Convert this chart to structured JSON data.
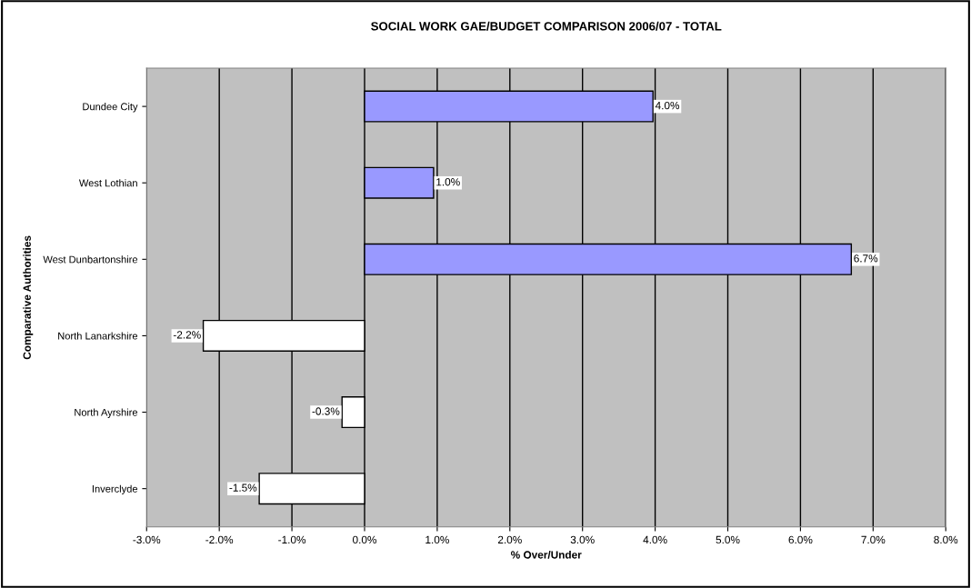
{
  "chart_data": {
    "type": "bar",
    "orientation": "horizontal",
    "title": "SOCIAL WORK GAE/BUDGET COMPARISON 2006/07 - TOTAL",
    "xlabel": "% Over/Under",
    "ylabel": "Comparative Authorities",
    "categories": [
      "Dundee City",
      "West Lothian",
      "West Dunbartonshire",
      "North Lanarkshire",
      "North Ayrshire",
      "Inverclyde"
    ],
    "values": [
      3.97,
      0.95,
      6.7,
      -2.22,
      -0.31,
      -1.45
    ],
    "value_labels": [
      "4.0%",
      "1.0%",
      "6.7%",
      "-2.2%",
      "-0.3%",
      "-1.5%"
    ],
    "colors": [
      "#9999ff",
      "#9999ff",
      "#9999ff",
      "#ffffff",
      "#ffffff",
      "#ffffff"
    ],
    "xlim": [
      -3,
      8
    ],
    "xticks": [
      {
        "value": -3,
        "label": "-3.0%"
      },
      {
        "value": -2,
        "label": "-2.0%"
      },
      {
        "value": -1,
        "label": "-1.0%"
      },
      {
        "value": 0,
        "label": "0.0%"
      },
      {
        "value": 1,
        "label": "1.0%"
      },
      {
        "value": 2,
        "label": "2.0%"
      },
      {
        "value": 3,
        "label": "3.0%"
      },
      {
        "value": 4,
        "label": "4.0%"
      },
      {
        "value": 5,
        "label": "5.0%"
      },
      {
        "value": 6,
        "label": "6.0%"
      },
      {
        "value": 7,
        "label": "7.0%"
      },
      {
        "value": 8,
        "label": "8.0%"
      }
    ],
    "grid": "x",
    "legend": false
  }
}
